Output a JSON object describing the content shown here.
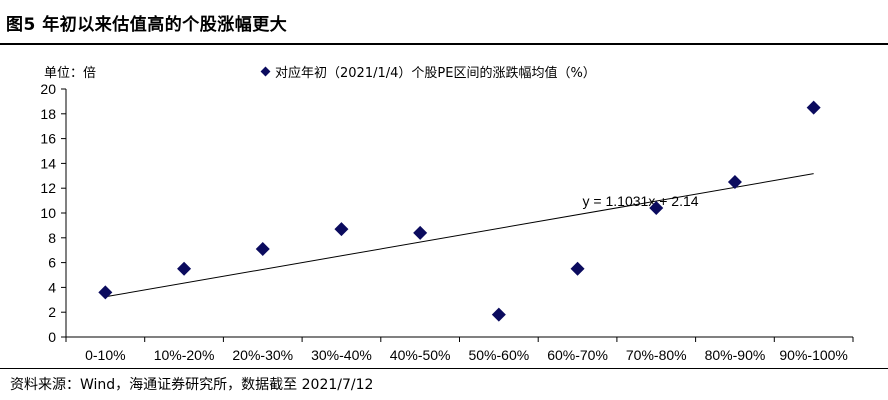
{
  "figure": {
    "title": "图5  年初以来估值高的个股涨幅更大",
    "source": "资料来源：Wind，海通证券研究所，数据截至 2021/7/12"
  },
  "chart_data": {
    "type": "scatter",
    "unit_label": "单位：倍",
    "legend": "对应年初（2021/1/4）个股PE区间的涨跌幅均值（%）",
    "categories": [
      "0-10%",
      "10%-20%",
      "20%-30%",
      "30%-40%",
      "40%-50%",
      "50%-60%",
      "60%-70%",
      "70%-80%",
      "80%-90%",
      "90%-100%"
    ],
    "values": [
      3.6,
      5.5,
      7.1,
      8.7,
      8.4,
      1.8,
      5.5,
      10.4,
      12.5,
      18.5
    ],
    "ylim": [
      0,
      20
    ],
    "yticks": [
      0,
      2,
      4,
      6,
      8,
      10,
      12,
      14,
      16,
      18,
      20
    ],
    "trendline": {
      "label": "y = 1.1031x + 2.14",
      "slope": 1.1031,
      "intercept": 2.14
    },
    "marker_color": "#0b0b5e",
    "grid": false
  }
}
